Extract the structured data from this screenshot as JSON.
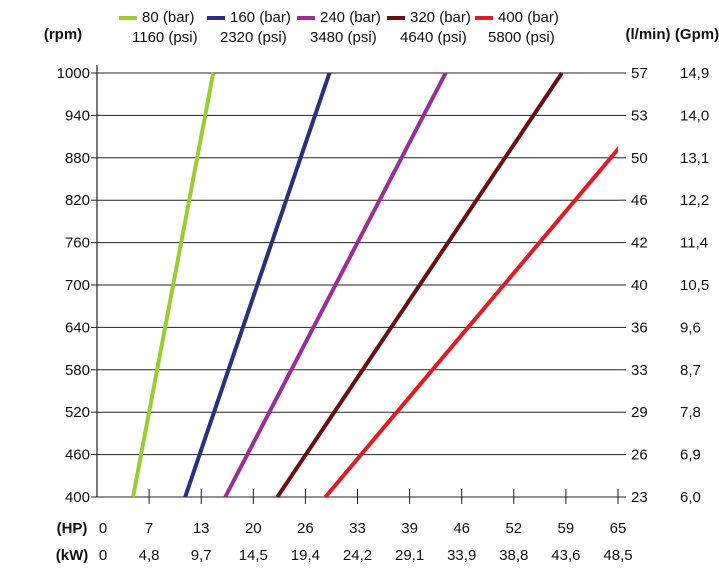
{
  "chart_data": {
    "type": "line",
    "left_axis": {
      "unit": "(rpm)",
      "ticks": [
        "1000",
        "940",
        "880",
        "820",
        "760",
        "700",
        "640",
        "580",
        "520",
        "460",
        "400"
      ],
      "range": [
        400,
        1000
      ]
    },
    "right_axes": [
      {
        "unit": "(l/min)",
        "ticks": [
          "57",
          "53",
          "50",
          "46",
          "42",
          "40",
          "36",
          "33",
          "29",
          "26",
          "23"
        ]
      },
      {
        "unit": "(Gpm)",
        "ticks": [
          "14,9",
          "14,0",
          "13,1",
          "12,2",
          "11,4",
          "10,5",
          "9,6",
          "8,7",
          "7,8",
          "6,9",
          "6,0"
        ]
      }
    ],
    "bottom_axes": [
      {
        "unit": "(HP)",
        "ticks": [
          "0",
          "7",
          "13",
          "20",
          "26",
          "33",
          "39",
          "46",
          "52",
          "59",
          "65"
        ],
        "range": [
          0,
          65
        ]
      },
      {
        "unit": "(kW)",
        "ticks": [
          "0",
          "4,8",
          "9,7",
          "14,5",
          "19,4",
          "24,2",
          "29,1",
          "33,9",
          "38,8",
          "43,6",
          "48,5"
        ]
      }
    ],
    "grid": "horizontal",
    "legend_position": "top",
    "series": [
      {
        "label_bar": "80 (bar)",
        "label_psi": "1160 (psi)",
        "color": "#9acd32",
        "points": [
          [
            4.5,
            400
          ],
          [
            14.5,
            1000
          ]
        ]
      },
      {
        "label_bar": "160 (bar)",
        "label_psi": "2320 (psi)",
        "color": "#2a2f80",
        "points": [
          [
            11.0,
            400
          ],
          [
            29.0,
            1000
          ]
        ]
      },
      {
        "label_bar": "240 (bar)",
        "label_psi": "3480 (psi)",
        "color": "#9b2e96",
        "points": [
          [
            16.0,
            400
          ],
          [
            43.5,
            1000
          ]
        ]
      },
      {
        "label_bar": "320 (bar)",
        "label_psi": "4640 (psi)",
        "color": "#6b1010",
        "points": [
          [
            22.5,
            400
          ],
          [
            58.0,
            1000
          ]
        ]
      },
      {
        "label_bar": "400 (bar)",
        "label_psi": "5800 (psi)",
        "color": "#e01b24",
        "points": [
          [
            28.5,
            400
          ],
          [
            73.0,
            1000
          ]
        ]
      }
    ]
  }
}
